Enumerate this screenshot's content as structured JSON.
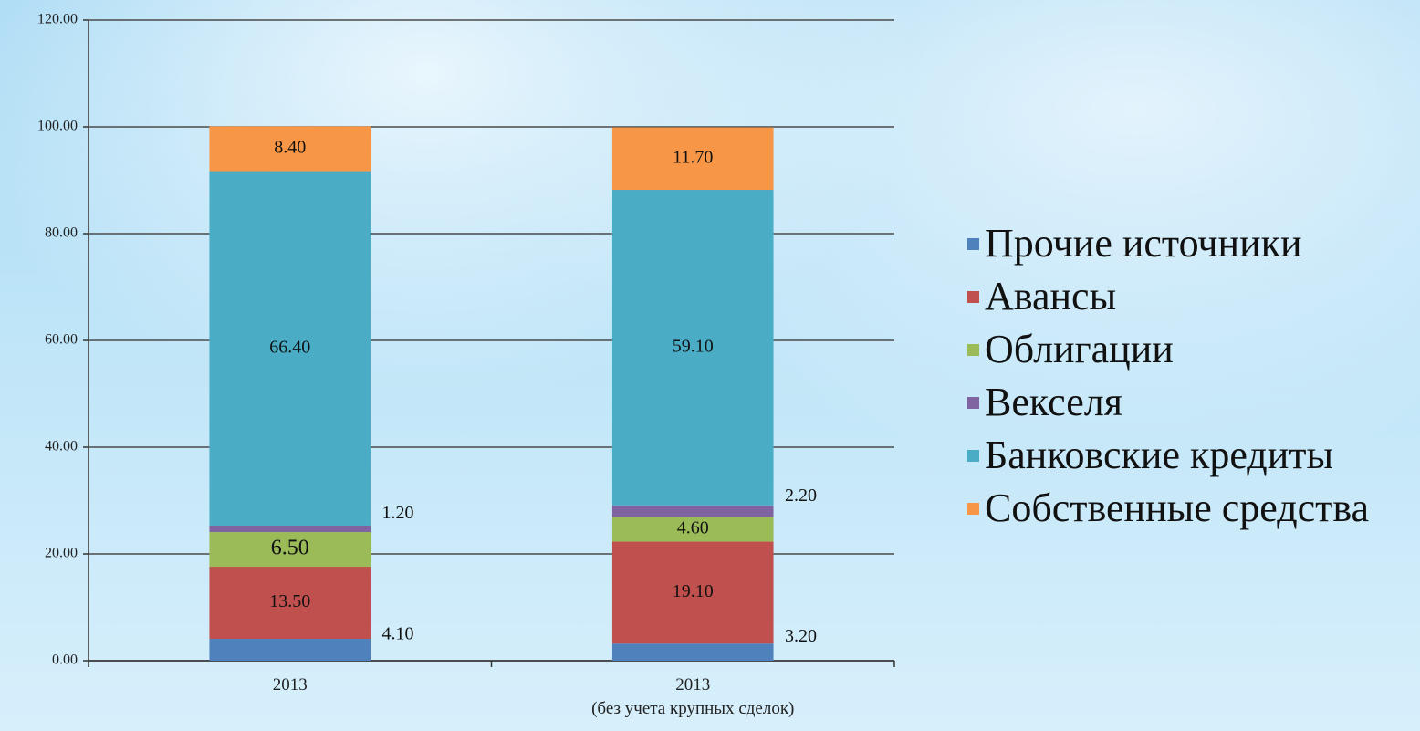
{
  "chart_data": {
    "type": "stacked_bar",
    "categories": [
      "2013",
      "2013\n(без учета крупных сделок)"
    ],
    "series": [
      {
        "name": "Прочие источники",
        "color": "#4f81bd",
        "values": [
          4.1,
          3.2
        ],
        "value_labels": [
          "4.10",
          "3.20"
        ]
      },
      {
        "name": "Авансы",
        "color": "#c0504d",
        "values": [
          13.5,
          19.1
        ],
        "value_labels": [
          "13.50",
          "19.10"
        ]
      },
      {
        "name": "Облигации",
        "color": "#9bbb59",
        "values": [
          6.5,
          4.6
        ],
        "value_labels": [
          "6.50",
          "4.60"
        ]
      },
      {
        "name": "Векселя",
        "color": "#8064a2",
        "values": [
          1.2,
          2.2
        ],
        "value_labels": [
          "1.20",
          "2.20"
        ]
      },
      {
        "name": "Банковские кредиты",
        "color": "#4bacc6",
        "values": [
          66.4,
          59.1
        ],
        "value_labels": [
          "66.40",
          "59.10"
        ]
      },
      {
        "name": "Собственные средства",
        "color": "#f79646",
        "values": [
          8.4,
          11.7
        ],
        "value_labels": [
          "8.40",
          "11.70"
        ]
      }
    ],
    "ylim": [
      0,
      120
    ],
    "yticks": [
      {
        "value": 0,
        "label": "0.00"
      },
      {
        "value": 20,
        "label": "20.00"
      },
      {
        "value": 40,
        "label": "40.00"
      },
      {
        "value": 60,
        "label": "60.00"
      },
      {
        "value": 80,
        "label": "80.00"
      },
      {
        "value": 100,
        "label": "100.00"
      },
      {
        "value": 120,
        "label": "120.00"
      }
    ],
    "grid": true,
    "legend": "right"
  }
}
